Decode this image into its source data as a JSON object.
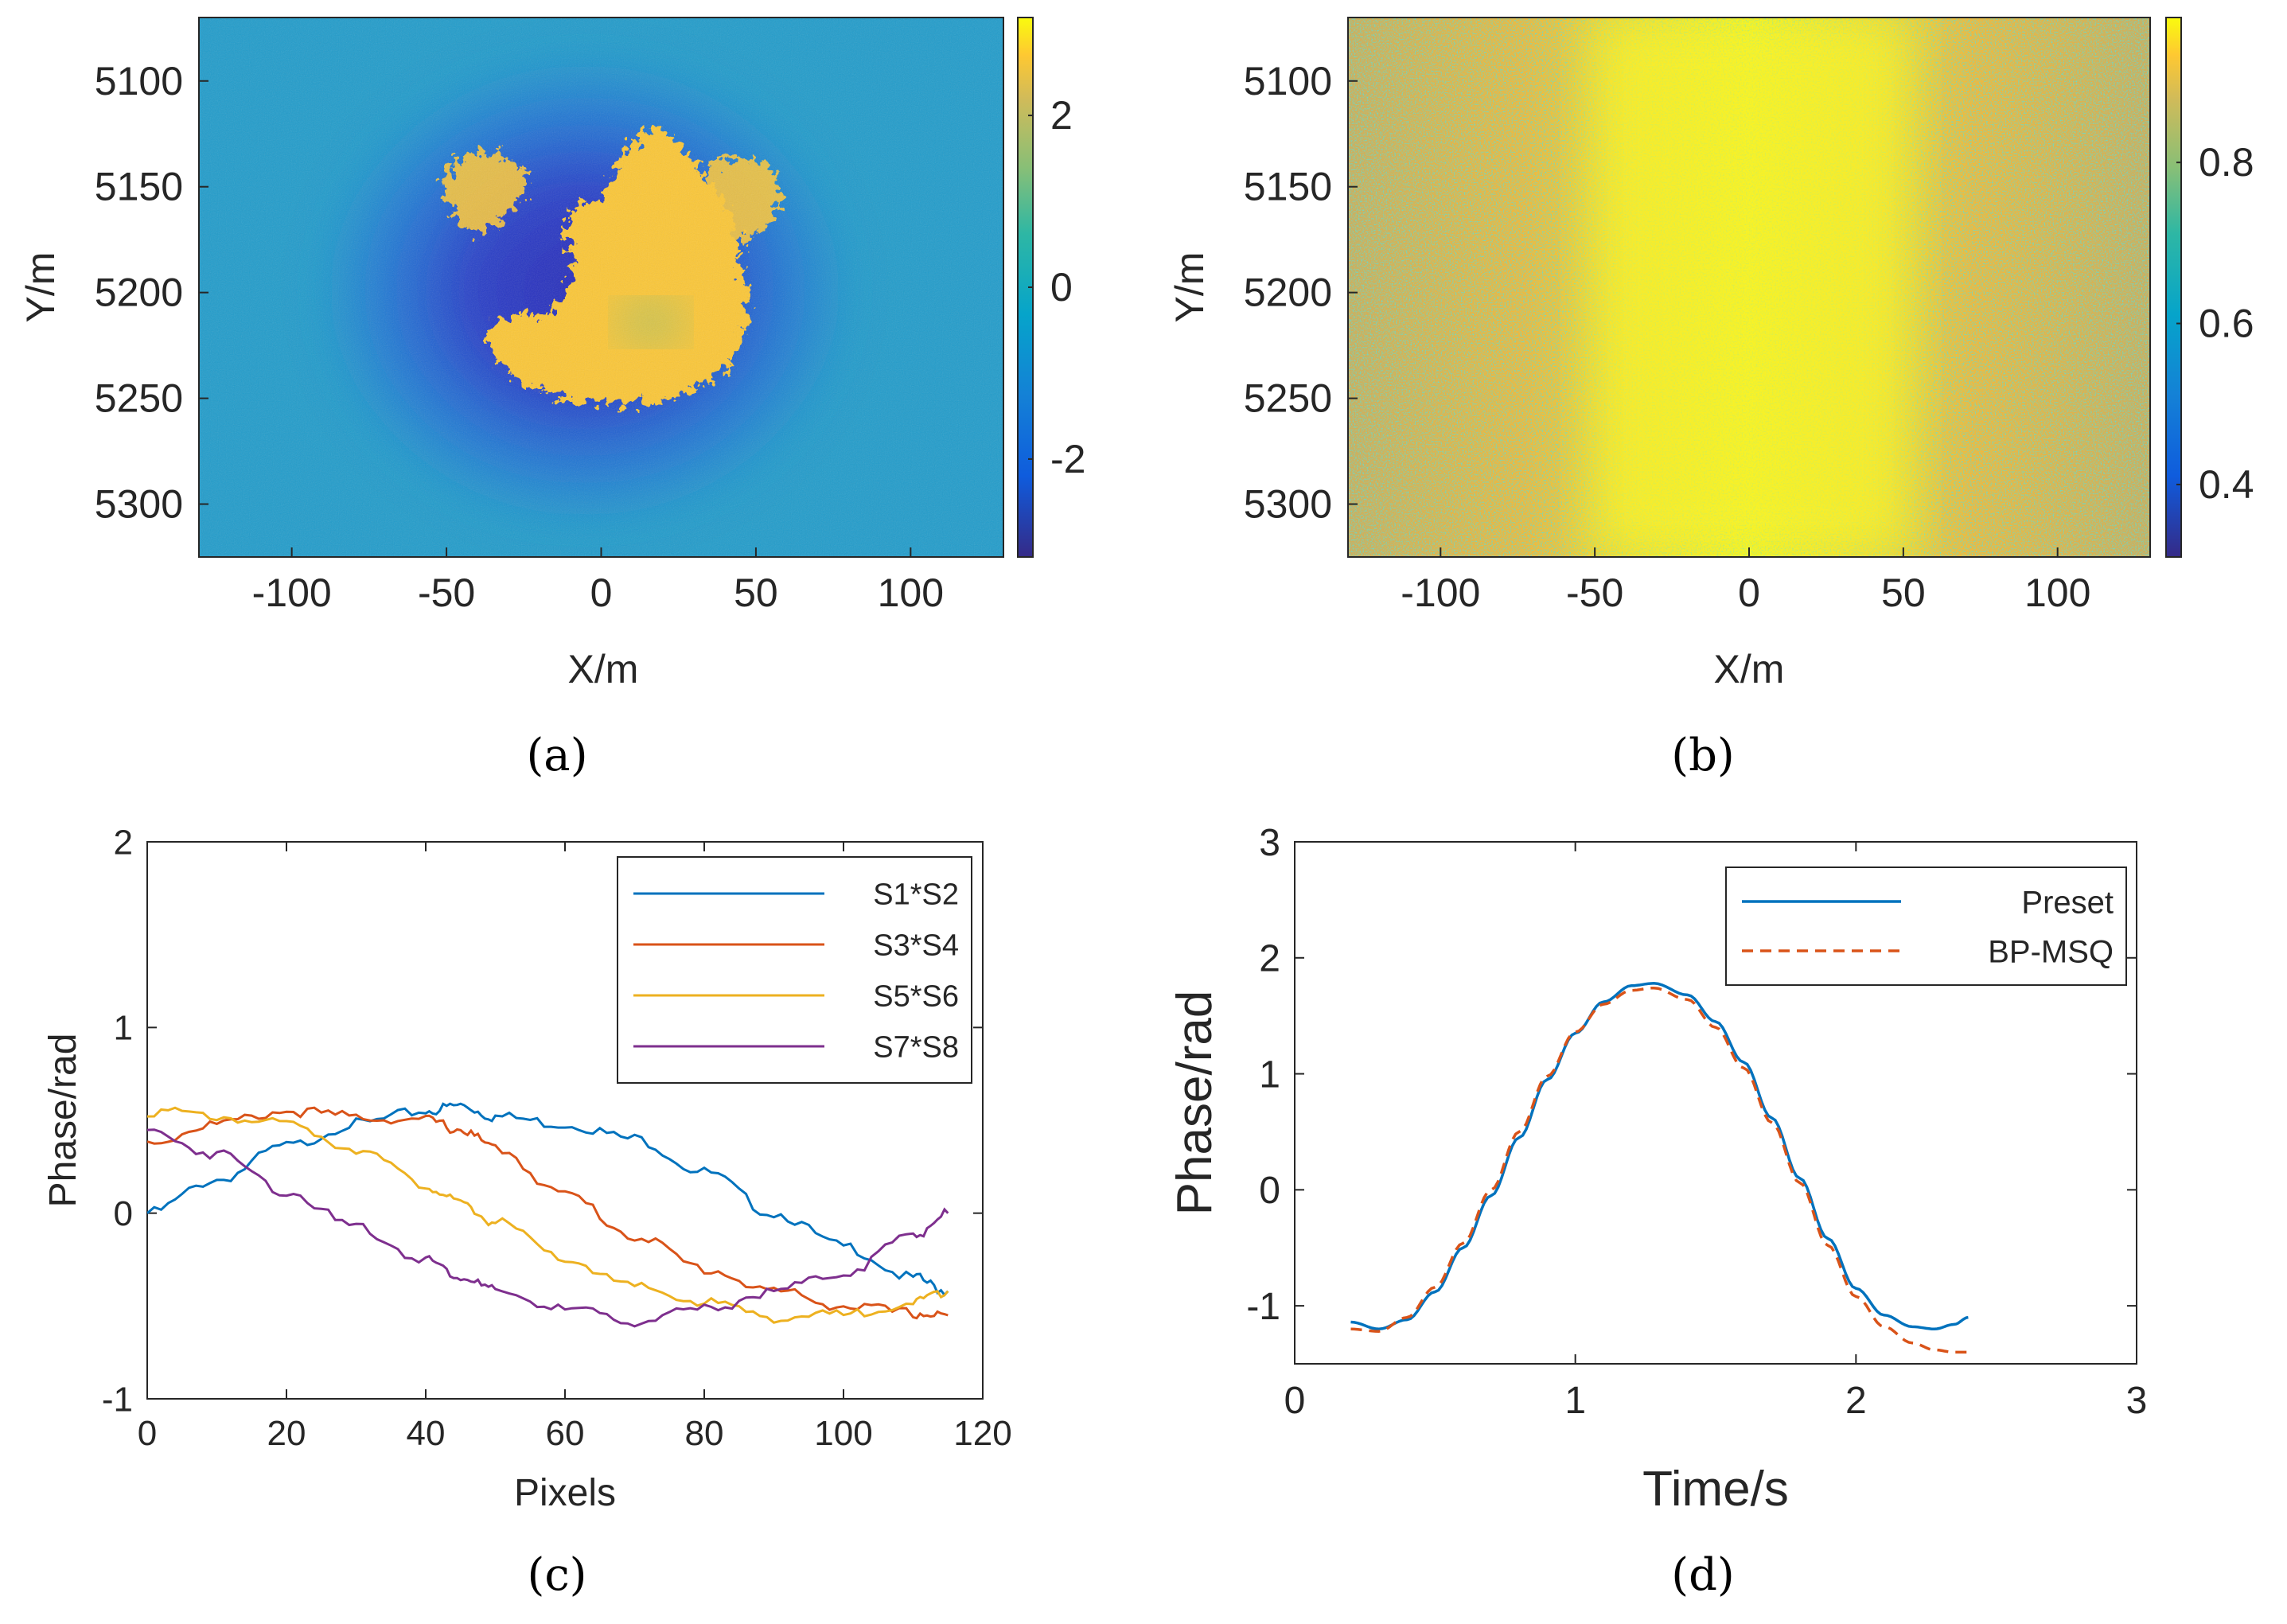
{
  "chart_data": [
    {
      "panel": "a",
      "type": "heatmap",
      "caption": "(a)",
      "xlabel": "X/m",
      "ylabel": "Y/m",
      "xlim": [
        -130,
        130
      ],
      "ylim": [
        5070,
        5325
      ],
      "xticks": [
        -100,
        -50,
        0,
        50,
        100
      ],
      "yticks": [
        5100,
        5150,
        5200,
        5250,
        5300
      ],
      "xtick_labels": [
        "-100",
        "-50",
        "0",
        "50",
        "100"
      ],
      "ytick_labels": [
        "5100",
        "5150",
        "5200",
        "5250",
        "5300"
      ],
      "colorbar": {
        "range": [
          -3.14,
          3.14
        ],
        "ticks": [
          -2,
          0,
          2
        ],
        "tick_labels": [
          "-2",
          "0",
          "2"
        ]
      },
      "colormap": "parula",
      "description_values": {
        "background": -1.2,
        "ring": -2.6,
        "center_lobes": 2.4,
        "center_spot": 0.9
      }
    },
    {
      "panel": "b",
      "type": "heatmap",
      "caption": "(b)",
      "xlabel": "X/m",
      "ylabel": "Y/m",
      "xlim": [
        -130,
        130
      ],
      "ylim": [
        5070,
        5325
      ],
      "xticks": [
        -100,
        -50,
        0,
        50,
        100
      ],
      "yticks": [
        5100,
        5150,
        5200,
        5250,
        5300
      ],
      "xtick_labels": [
        "-100",
        "-50",
        "0",
        "50",
        "100"
      ],
      "ytick_labels": [
        "5100",
        "5150",
        "5200",
        "5250",
        "5300"
      ],
      "colorbar": {
        "range": [
          0.31,
          0.98
        ],
        "ticks": [
          0.4,
          0.6,
          0.8
        ],
        "tick_labels": [
          "0.4",
          "0.6",
          "0.8"
        ]
      },
      "colormap": "parula",
      "description_values": {
        "center": 0.97,
        "edges": 0.82
      }
    },
    {
      "panel": "c",
      "type": "line",
      "caption": "(c)",
      "xlabel": "Pixels",
      "ylabel": "Phase/rad",
      "xlim": [
        0,
        120
      ],
      "ylim": [
        -1,
        2
      ],
      "xticks": [
        0,
        20,
        40,
        60,
        80,
        100,
        120
      ],
      "yticks": [
        -1,
        0,
        1,
        2
      ],
      "xtick_labels": [
        "0",
        "20",
        "40",
        "60",
        "80",
        "100",
        "120"
      ],
      "ytick_labels": [
        "-1",
        "0",
        "1",
        "2"
      ],
      "legend_position": "top-right",
      "x": [
        0,
        10,
        20,
        30,
        40,
        45,
        50,
        60,
        70,
        80,
        90,
        100,
        110,
        115
      ],
      "series": [
        {
          "name": "S1*S2",
          "color": "#0072BD",
          "values": [
            0.0,
            0.18,
            0.36,
            0.48,
            0.55,
            0.58,
            0.52,
            0.48,
            0.4,
            0.22,
            0.0,
            -0.18,
            -0.35,
            -0.42
          ]
        },
        {
          "name": "S3*S4",
          "color": "#D95319",
          "values": [
            0.38,
            0.48,
            0.55,
            0.52,
            0.5,
            0.45,
            0.35,
            0.1,
            -0.12,
            -0.3,
            -0.42,
            -0.5,
            -0.54,
            -0.55
          ]
        },
        {
          "name": "S5*S6",
          "color": "#EDB120",
          "values": [
            0.55,
            0.52,
            0.48,
            0.35,
            0.15,
            0.05,
            -0.05,
            -0.25,
            -0.4,
            -0.48,
            -0.56,
            -0.55,
            -0.48,
            -0.42
          ]
        },
        {
          "name": "S7*S8",
          "color": "#7E2F8E",
          "values": [
            0.44,
            0.32,
            0.12,
            -0.08,
            -0.25,
            -0.34,
            -0.42,
            -0.52,
            -0.58,
            -0.52,
            -0.42,
            -0.32,
            -0.12,
            0.0
          ]
        }
      ]
    },
    {
      "panel": "d",
      "type": "line",
      "caption": "(d)",
      "xlabel": "Time/s",
      "ylabel": "Phase/rad",
      "xlim": [
        0,
        3
      ],
      "ylim": [
        -1.5,
        3
      ],
      "xticks": [
        0,
        1,
        2,
        3
      ],
      "yticks": [
        -1,
        0,
        1,
        2,
        3
      ],
      "xtick_labels": [
        "0",
        "1",
        "2",
        "3"
      ],
      "ytick_labels": [
        "-1",
        "0",
        "1",
        "2",
        "3"
      ],
      "legend_position": "top-right",
      "x": [
        0.2,
        0.3,
        0.4,
        0.5,
        0.6,
        0.7,
        0.8,
        0.9,
        1.0,
        1.1,
        1.2,
        1.28,
        1.4,
        1.5,
        1.6,
        1.7,
        1.8,
        1.9,
        2.0,
        2.1,
        2.2,
        2.28,
        2.35,
        2.4
      ],
      "series": [
        {
          "name": "Preset",
          "color": "#0072BD",
          "style": "solid",
          "values": [
            -1.14,
            -1.2,
            -1.12,
            -0.88,
            -0.5,
            -0.05,
            0.45,
            0.95,
            1.35,
            1.62,
            1.76,
            1.78,
            1.68,
            1.45,
            1.1,
            0.62,
            0.1,
            -0.42,
            -0.85,
            -1.08,
            -1.18,
            -1.2,
            -1.16,
            -1.1
          ]
        },
        {
          "name": "BP-MSQ",
          "color": "#D95319",
          "style": "dashed",
          "values": [
            -1.2,
            -1.22,
            -1.1,
            -0.84,
            -0.46,
            0.0,
            0.5,
            0.98,
            1.36,
            1.6,
            1.72,
            1.74,
            1.64,
            1.4,
            1.05,
            0.58,
            0.06,
            -0.48,
            -0.92,
            -1.18,
            -1.32,
            -1.38,
            -1.4,
            -1.4
          ]
        }
      ]
    }
  ]
}
